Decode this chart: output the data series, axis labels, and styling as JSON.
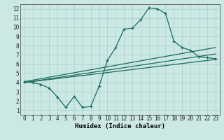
{
  "xlabel": "Humidex (Indice chaleur)",
  "background_color": "#cce8e4",
  "line_color": "#1a6b5e",
  "grid_color": "#aed4cf",
  "xlim": [
    -0.5,
    23.5
  ],
  "ylim": [
    0.5,
    12.5
  ],
  "xticks": [
    0,
    1,
    2,
    3,
    4,
    5,
    6,
    7,
    8,
    9,
    10,
    11,
    12,
    13,
    14,
    15,
    16,
    17,
    18,
    19,
    20,
    21,
    22,
    23
  ],
  "yticks": [
    1,
    2,
    3,
    4,
    5,
    6,
    7,
    8,
    9,
    10,
    11,
    12
  ],
  "line1_x": [
    0,
    1,
    2,
    3,
    4,
    5,
    6,
    7,
    8,
    9,
    10,
    11,
    12,
    13,
    14,
    15,
    16,
    17,
    18,
    19,
    20,
    21,
    22,
    23
  ],
  "line1_y": [
    4.1,
    4.0,
    3.8,
    3.4,
    2.4,
    1.3,
    2.5,
    1.3,
    1.4,
    3.6,
    6.4,
    7.8,
    9.8,
    9.9,
    10.8,
    12.1,
    12.0,
    11.5,
    8.5,
    7.8,
    7.5,
    6.8,
    6.7,
    6.6
  ],
  "line2_x": [
    0,
    23
  ],
  "line2_y": [
    4.1,
    7.8
  ],
  "line3_x": [
    0,
    23
  ],
  "line3_y": [
    4.0,
    6.5
  ],
  "line4_x": [
    0,
    23
  ],
  "line4_y": [
    4.0,
    7.1
  ],
  "xlabel_fontsize": 6.5,
  "tick_fontsize": 5.5
}
